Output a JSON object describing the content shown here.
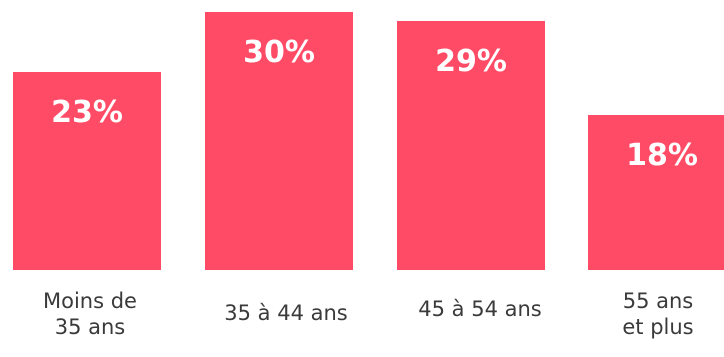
{
  "chart_data": {
    "type": "bar",
    "categories": [
      "Moins de\n35 ans",
      "35 à 44 ans",
      "45 à 54 ans",
      "55 ans\net plus"
    ],
    "values": [
      23,
      30,
      29,
      18
    ],
    "data_labels": [
      "23%",
      "30%",
      "29%",
      "18%"
    ],
    "unit": "%",
    "title": "",
    "xlabel": "",
    "ylabel": "",
    "ylim": [
      0,
      30
    ],
    "grid": false,
    "legend": "none",
    "bar_color": "#ff4b66",
    "label_color": "#ffffff"
  }
}
